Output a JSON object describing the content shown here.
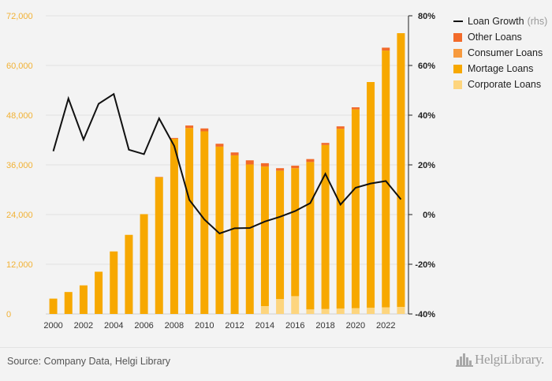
{
  "chart_data": {
    "type": "bar",
    "stacked": true,
    "categories": [
      "2000",
      "2001",
      "2002",
      "2003",
      "2004",
      "2005",
      "2006",
      "2007",
      "2008",
      "2009",
      "2010",
      "2011",
      "2012",
      "2013",
      "2014",
      "2015",
      "2016",
      "2017",
      "2018",
      "2019",
      "2020",
      "2021",
      "2022",
      "2023"
    ],
    "x_tick_labels": [
      "2000",
      "2002",
      "2004",
      "2006",
      "2008",
      "2010",
      "2012",
      "2014",
      "2016",
      "2018",
      "2020",
      "2022"
    ],
    "series": [
      {
        "name": "Corporate Loans",
        "color": "#fdd57e",
        "values": [
          0,
          0,
          0,
          0,
          0,
          0,
          0,
          0,
          0,
          0,
          0,
          0,
          0,
          0,
          1900,
          3600,
          4300,
          1100,
          1200,
          1300,
          1400,
          1500,
          1600,
          1700
        ]
      },
      {
        "name": "Mortage Loans",
        "color": "#f7a800",
        "values": [
          3700,
          5300,
          6900,
          10200,
          15100,
          19100,
          24100,
          33000,
          42300,
          44900,
          44100,
          40400,
          38300,
          36100,
          33700,
          31000,
          30900,
          35600,
          39600,
          43400,
          48000,
          54500,
          62000,
          66100
        ]
      },
      {
        "name": "Consumer Loans",
        "color": "#f79a3e",
        "values": [
          0,
          0,
          0,
          0,
          0,
          0,
          0,
          0,
          0,
          0,
          0,
          0,
          0,
          0,
          0,
          0,
          0,
          0,
          0,
          0,
          0,
          0,
          0,
          0
        ]
      },
      {
        "name": "Other Loans",
        "color": "#f26a2a",
        "values": [
          0,
          0,
          0,
          0,
          0,
          0,
          0,
          100,
          200,
          600,
          700,
          700,
          700,
          1000,
          800,
          600,
          600,
          700,
          500,
          600,
          500,
          0,
          700,
          0
        ]
      }
    ],
    "line_series": {
      "name": "Loan Growth",
      "suffix": "(rhs)",
      "color": "#111111",
      "values": [
        25.5,
        46.7,
        30.2,
        44.6,
        48.5,
        26.1,
        24.3,
        38.7,
        27.6,
        5.9,
        -2.0,
        -7.6,
        -5.5,
        -5.4,
        -2.8,
        -0.9,
        1.4,
        4.6,
        16.4,
        4.0,
        10.8,
        12.5,
        13.5,
        6.1
      ]
    },
    "y_left": {
      "min": 0,
      "max": 72000,
      "ticks": [
        0,
        12000,
        24000,
        36000,
        48000,
        60000,
        72000
      ],
      "tick_labels": [
        "0",
        "12,000",
        "24,000",
        "36,000",
        "48,000",
        "60,000",
        "72,000"
      ]
    },
    "y_right": {
      "min": -40,
      "max": 80,
      "ticks": [
        -40,
        -20,
        0,
        20,
        40,
        60,
        80
      ],
      "tick_labels": [
        "-40%",
        "-20%",
        "0%",
        "20%",
        "40%",
        "60%",
        "80%"
      ]
    },
    "legend_position": "top-right",
    "grid": true
  },
  "legend": [
    {
      "label": "Loan Growth",
      "suffix": "(rhs)",
      "kind": "line",
      "color": "#111111"
    },
    {
      "label": "Other Loans",
      "kind": "box",
      "color": "#f26a2a"
    },
    {
      "label": "Consumer Loans",
      "kind": "box",
      "color": "#f79a3e"
    },
    {
      "label": "Mortage Loans",
      "kind": "box",
      "color": "#f7a800"
    },
    {
      "label": "Corporate Loans",
      "kind": "box",
      "color": "#fdd57e"
    }
  ],
  "footer": {
    "source": "Source: Company Data, Helgi Library",
    "logo_text": "HelgiLibrary."
  }
}
